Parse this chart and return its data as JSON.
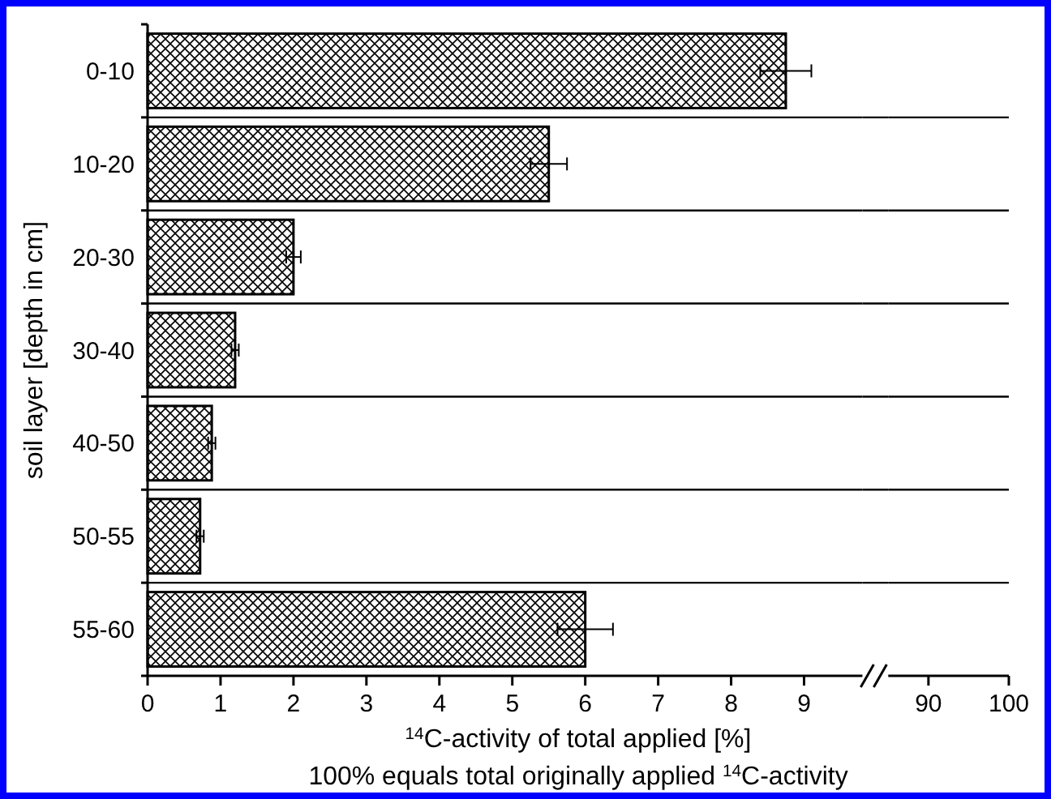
{
  "chart_data": {
    "type": "bar",
    "orientation": "horizontal",
    "categories": [
      "0-10",
      "10-20",
      "20-30",
      "30-40",
      "40-50",
      "50-55",
      "55-60"
    ],
    "values": [
      8.75,
      5.5,
      2.0,
      1.2,
      0.88,
      0.72,
      6.0
    ],
    "errors": [
      0.35,
      0.25,
      0.1,
      0.05,
      0.05,
      0.05,
      0.38
    ],
    "color": "#000000",
    "xlim": [
      0,
      9.8
    ],
    "xticks": [
      0,
      1,
      2,
      3,
      4,
      5,
      6,
      7,
      8,
      9
    ],
    "x2lim": [
      85,
      100
    ],
    "x2ticks": [
      90,
      100
    ],
    "xlabel": "$^{14}$C-activity of total applied [%]",
    "ylabel": "soil layer [depth in cm]",
    "annotations": [
      "100% equals total originally applied $^{14}$C-activity"
    ],
    "grid": "y"
  }
}
